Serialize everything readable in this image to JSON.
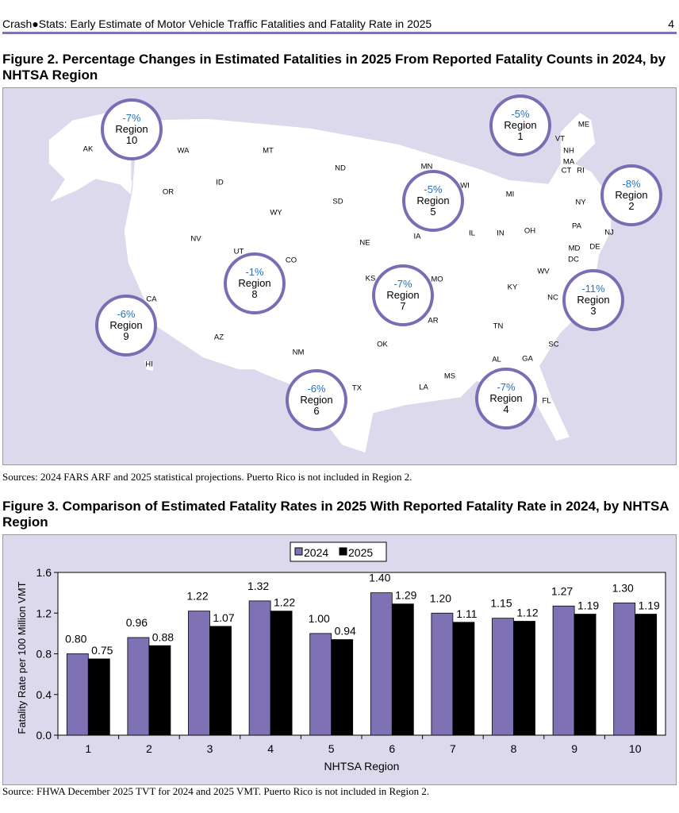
{
  "header": {
    "title": "Crash●Stats: Early Estimate of Motor Vehicle Traffic Fatalities and Fatality Rate in 2025",
    "page": "4"
  },
  "figure2": {
    "title": "Figure 2. Percentage Changes in Estimated Fatalities in 2025 From Reported Fatality Counts in 2024, by NHTSA Region",
    "regions": [
      {
        "label": "Region",
        "num": "1",
        "pct": "-5%"
      },
      {
        "label": "Region",
        "num": "2",
        "pct": "-8%"
      },
      {
        "label": "Region",
        "num": "3",
        "pct": "-11%"
      },
      {
        "label": "Region",
        "num": "4",
        "pct": "-7%"
      },
      {
        "label": "Region",
        "num": "5",
        "pct": "-5%"
      },
      {
        "label": "Region",
        "num": "6",
        "pct": "-6%"
      },
      {
        "label": "Region",
        "num": "7",
        "pct": "-7%"
      },
      {
        "label": "Region",
        "num": "8",
        "pct": "-1%"
      },
      {
        "label": "Region",
        "num": "9",
        "pct": "-6%"
      },
      {
        "label": "Region",
        "num": "10",
        "pct": "-7%"
      }
    ],
    "states": [
      "AK",
      "WA",
      "MT",
      "OR",
      "ID",
      "ND",
      "MN",
      "WI",
      "MI",
      "SD",
      "WY",
      "NE",
      "IA",
      "IL",
      "IN",
      "OH",
      "NY",
      "PA",
      "NJ",
      "DE",
      "MD",
      "DC",
      "VA",
      "WV",
      "KY",
      "NC",
      "NV",
      "UT",
      "CO",
      "KS",
      "MO",
      "CA",
      "AZ",
      "NM",
      "OK",
      "AR",
      "TN",
      "SC",
      "GA",
      "AL",
      "MS",
      "LA",
      "TX",
      "FL",
      "HI",
      "VT",
      "ME",
      "NH",
      "MA",
      "CT",
      "RI"
    ],
    "source": "Sources: 2024 FARS ARF and 2025 statistical projections. Puerto Rico is not included in Region 2.",
    "colors": {
      "background": "#dcd9ec",
      "circle_border": "#7b6db3",
      "percent_text": "#1f72c4"
    }
  },
  "figure3": {
    "title": "Figure 3. Comparison of Estimated Fatality Rates in 2025 With Reported Fatality Rate in 2024, by NHTSA Region",
    "source": "Source: FHWA December 2025 TVT for 2024 and 2025 VMT. Puerto Rico is not included in Region 2."
  },
  "chart_data": {
    "type": "bar",
    "xlabel": "NHTSA Region",
    "ylabel": "Fatality Rate per 100 Million VMT",
    "categories": [
      "1",
      "2",
      "3",
      "4",
      "5",
      "6",
      "7",
      "8",
      "9",
      "10"
    ],
    "ylim": [
      0,
      1.6
    ],
    "yticks": [
      "0.0",
      "0.4",
      "0.8",
      "1.2",
      "1.6"
    ],
    "legend_position": "top-center",
    "grid": false,
    "series": [
      {
        "name": "2024",
        "color": "#7f72b4",
        "values": [
          0.8,
          0.96,
          1.22,
          1.32,
          1.0,
          1.4,
          1.2,
          1.15,
          1.27,
          1.3
        ],
        "labels": [
          "0.80",
          "0.96",
          "1.22",
          "1.32",
          "1.00",
          "1.40",
          "1.20",
          "1.15",
          "1.27",
          "1.30"
        ]
      },
      {
        "name": "2025",
        "color": "#000000",
        "values": [
          0.75,
          0.88,
          1.07,
          1.22,
          0.94,
          1.29,
          1.11,
          1.12,
          1.19,
          1.19
        ],
        "labels": [
          "0.75",
          "0.88",
          "1.07",
          "1.22",
          "0.94",
          "1.29",
          "1.11",
          "1.12",
          "1.19",
          "1.19"
        ]
      }
    ]
  }
}
